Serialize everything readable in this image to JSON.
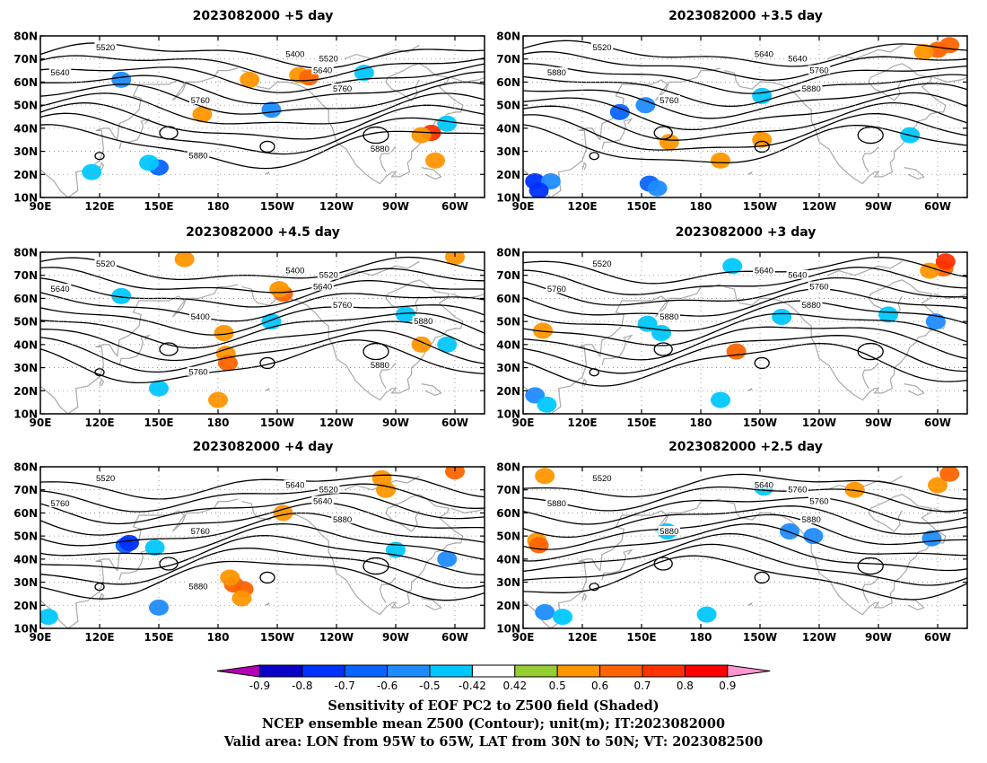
{
  "panels": [
    {
      "title": "2023082000 +5 day",
      "contour_labels": [
        "5520",
        "5400",
        "5520",
        "5640",
        "5640",
        "5760",
        "5760",
        "5880",
        "5880"
      ],
      "shading": [
        {
          "lon": 131,
          "lat": 61,
          "v": -0.6
        },
        {
          "lon": 196,
          "lat": 61,
          "v": 0.5
        },
        {
          "lon": 221,
          "lat": 63,
          "v": 0.5
        },
        {
          "lon": 226,
          "lat": 62,
          "v": 0.6
        },
        {
          "lon": 207,
          "lat": 48,
          "v": -0.55
        },
        {
          "lon": 254,
          "lat": 64,
          "v": -0.5
        },
        {
          "lon": 288,
          "lat": 38,
          "v": 0.7
        },
        {
          "lon": 283,
          "lat": 37,
          "v": 0.5
        },
        {
          "lon": 150,
          "lat": 23,
          "v": -0.65
        },
        {
          "lon": 145,
          "lat": 25,
          "v": -0.5
        },
        {
          "lon": 116,
          "lat": 21,
          "v": -0.5
        },
        {
          "lon": 172,
          "lat": 46,
          "v": 0.5
        },
        {
          "lon": 296,
          "lat": 42,
          "v": -0.5
        },
        {
          "lon": 290,
          "lat": 26,
          "v": 0.5
        }
      ]
    },
    {
      "title": "2023082000 +3.5 day",
      "contour_labels": [
        "5520",
        "5640",
        "5640",
        "5760",
        "5880",
        "5760",
        "5880"
      ],
      "shading": [
        {
          "lon": 300,
          "lat": 74,
          "v": 0.6
        },
        {
          "lon": 293,
          "lat": 73,
          "v": 0.5
        },
        {
          "lon": 306,
          "lat": 76,
          "v": 0.65
        },
        {
          "lon": 96,
          "lat": 17,
          "v": -0.75
        },
        {
          "lon": 104,
          "lat": 17,
          "v": -0.6
        },
        {
          "lon": 98,
          "lat": 13,
          "v": -0.8
        },
        {
          "lon": 154,
          "lat": 16,
          "v": -0.7
        },
        {
          "lon": 158,
          "lat": 14,
          "v": -0.6
        },
        {
          "lon": 139,
          "lat": 47,
          "v": -0.65
        },
        {
          "lon": 152,
          "lat": 50,
          "v": -0.6
        },
        {
          "lon": 211,
          "lat": 54,
          "v": -0.5
        },
        {
          "lon": 211,
          "lat": 35,
          "v": 0.5
        },
        {
          "lon": 286,
          "lat": 37,
          "v": -0.5
        },
        {
          "lon": 164,
          "lat": 34,
          "v": 0.5
        },
        {
          "lon": 190,
          "lat": 26,
          "v": 0.5
        }
      ]
    },
    {
      "title": "2023082000 +4.5 day",
      "contour_labels": [
        "5520",
        "5400",
        "5520",
        "5640",
        "5640",
        "5400",
        "5760",
        "5760",
        "5880",
        "5880"
      ],
      "shading": [
        {
          "lon": 184,
          "lat": 36,
          "v": 0.5
        },
        {
          "lon": 185,
          "lat": 32,
          "v": 0.6
        },
        {
          "lon": 180,
          "lat": 16,
          "v": 0.5
        },
        {
          "lon": 183,
          "lat": 45,
          "v": 0.5
        },
        {
          "lon": 213,
          "lat": 62,
          "v": 0.6
        },
        {
          "lon": 211,
          "lat": 64,
          "v": 0.5
        },
        {
          "lon": 207,
          "lat": 50,
          "v": -0.5
        },
        {
          "lon": 283,
          "lat": 40,
          "v": 0.5
        },
        {
          "lon": 296,
          "lat": 40,
          "v": -0.5
        },
        {
          "lon": 275,
          "lat": 53,
          "v": -0.5
        },
        {
          "lon": 131,
          "lat": 61,
          "v": -0.5
        },
        {
          "lon": 150,
          "lat": 21,
          "v": -0.5
        },
        {
          "lon": 163,
          "lat": 77,
          "v": 0.5
        },
        {
          "lon": 300,
          "lat": 78,
          "v": 0.5
        }
      ]
    },
    {
      "title": "2023082000 +3 day",
      "contour_labels": [
        "5520",
        "5640",
        "5640",
        "5760",
        "5760",
        "5880",
        "5880"
      ],
      "shading": [
        {
          "lon": 303,
          "lat": 73,
          "v": 0.6
        },
        {
          "lon": 296,
          "lat": 72,
          "v": 0.5
        },
        {
          "lon": 304,
          "lat": 76,
          "v": 0.7
        },
        {
          "lon": 299,
          "lat": 50,
          "v": -0.6
        },
        {
          "lon": 96,
          "lat": 18,
          "v": -0.6
        },
        {
          "lon": 102,
          "lat": 14,
          "v": -0.5
        },
        {
          "lon": 100,
          "lat": 46,
          "v": 0.5
        },
        {
          "lon": 153,
          "lat": 49,
          "v": -0.5
        },
        {
          "lon": 160,
          "lat": 45,
          "v": -0.5
        },
        {
          "lon": 198,
          "lat": 37,
          "v": 0.6
        },
        {
          "lon": 221,
          "lat": 52,
          "v": -0.5
        },
        {
          "lon": 196,
          "lat": 74,
          "v": -0.5
        },
        {
          "lon": 190,
          "lat": 16,
          "v": -0.5
        },
        {
          "lon": 275,
          "lat": 53,
          "v": -0.5
        }
      ]
    },
    {
      "title": "2023082000 +4 day",
      "contour_labels": [
        "5520",
        "5640",
        "5520",
        "5640",
        "5760",
        "5760",
        "5880",
        "5880"
      ],
      "shading": [
        {
          "lon": 188,
          "lat": 29,
          "v": 0.6
        },
        {
          "lon": 193,
          "lat": 27,
          "v": 0.6
        },
        {
          "lon": 186,
          "lat": 32,
          "v": 0.5
        },
        {
          "lon": 192,
          "lat": 23,
          "v": 0.5
        },
        {
          "lon": 133,
          "lat": 46,
          "v": -0.7
        },
        {
          "lon": 135,
          "lat": 47,
          "v": -0.8
        },
        {
          "lon": 148,
          "lat": 45,
          "v": -0.5
        },
        {
          "lon": 213,
          "lat": 60,
          "v": 0.5
        },
        {
          "lon": 265,
          "lat": 70,
          "v": 0.5
        },
        {
          "lon": 300,
          "lat": 78,
          "v": 0.6
        },
        {
          "lon": 296,
          "lat": 40,
          "v": -0.55
        },
        {
          "lon": 150,
          "lat": 19,
          "v": -0.6
        },
        {
          "lon": 94,
          "lat": 15,
          "v": -0.5
        },
        {
          "lon": 270,
          "lat": 44,
          "v": -0.5
        },
        {
          "lon": 263,
          "lat": 75,
          "v": 0.5
        }
      ]
    },
    {
      "title": "2023082000 +2.5 day",
      "contour_labels": [
        "5520",
        "5640",
        "5760",
        "5760",
        "5880",
        "5880",
        "5880"
      ],
      "shading": [
        {
          "lon": 101,
          "lat": 17,
          "v": -0.6
        },
        {
          "lon": 110,
          "lat": 15,
          "v": -0.5
        },
        {
          "lon": 97,
          "lat": 48,
          "v": 0.5
        },
        {
          "lon": 98,
          "lat": 46,
          "v": 0.6
        },
        {
          "lon": 163,
          "lat": 52,
          "v": -0.5
        },
        {
          "lon": 225,
          "lat": 52,
          "v": -0.6
        },
        {
          "lon": 237,
          "lat": 50,
          "v": -0.55
        },
        {
          "lon": 212,
          "lat": 71,
          "v": -0.5
        },
        {
          "lon": 300,
          "lat": 72,
          "v": 0.5
        },
        {
          "lon": 306,
          "lat": 77,
          "v": 0.6
        },
        {
          "lon": 297,
          "lat": 49,
          "v": -0.55
        },
        {
          "lon": 183,
          "lat": 16,
          "v": -0.5
        },
        {
          "lon": 101,
          "lat": 76,
          "v": 0.5
        },
        {
          "lon": 258,
          "lat": 70,
          "v": 0.5
        }
      ]
    }
  ],
  "axis": {
    "lat_labels": [
      "80N",
      "70N",
      "60N",
      "50N",
      "40N",
      "30N",
      "20N",
      "10N"
    ],
    "lon_labels": [
      "90E",
      "120E",
      "150E",
      "180",
      "150W",
      "120W",
      "90W",
      "60W"
    ]
  },
  "colorbar": {
    "labels": [
      "-0.9",
      "-0.8",
      "-0.7",
      "-0.6",
      "-0.5",
      "-0.42",
      "0.42",
      "0.5",
      "0.6",
      "0.7",
      "0.8",
      "0.9"
    ],
    "colors": [
      "#b400b4",
      "#0a00c8",
      "#0032ff",
      "#0a64ff",
      "#1e8cff",
      "#00c8ff",
      "#ffffff",
      "#96cd32",
      "#ff9600",
      "#ff6400",
      "#ff3200",
      "#ff0000",
      "#ff96d2"
    ]
  },
  "footer": {
    "line1": "Sensitivity of EOF PC2 to Z500 field (Shaded)",
    "line2": "NCEP ensemble mean Z500 (Contour); unit(m); IT:2023082000",
    "line3": "Valid area: LON from 95W to 65W, LAT from 30N to 50N; VT: 2023082500"
  }
}
